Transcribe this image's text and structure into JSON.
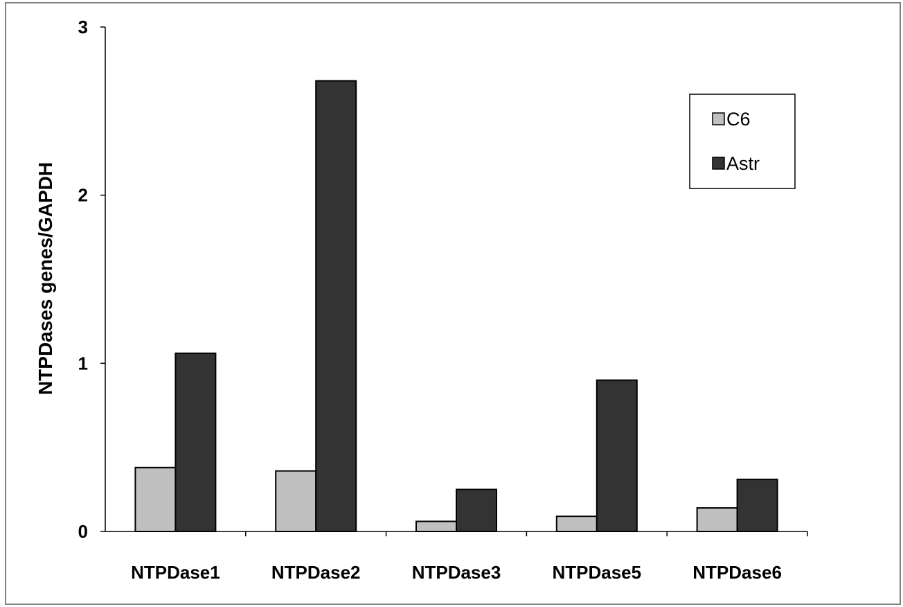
{
  "chart_data": {
    "type": "bar",
    "title": "",
    "xlabel": "",
    "ylabel": "NTPDases genes/GAPDH",
    "categories": [
      "NTPDase1",
      "NTPDase2",
      "NTPDase3",
      "NTPDase5",
      "NTPDase6"
    ],
    "series": [
      {
        "name": "C6",
        "values": [
          0.38,
          0.36,
          0.06,
          0.09,
          0.14
        ],
        "color": "#c0c0c0"
      },
      {
        "name": "Astr",
        "values": [
          1.06,
          2.68,
          0.25,
          0.9,
          0.31
        ],
        "color": "#333333"
      }
    ],
    "ylim": [
      0,
      3
    ],
    "yticks": [
      "0",
      "1",
      "2",
      "3"
    ],
    "grid": false,
    "legend_position": "top-right"
  }
}
